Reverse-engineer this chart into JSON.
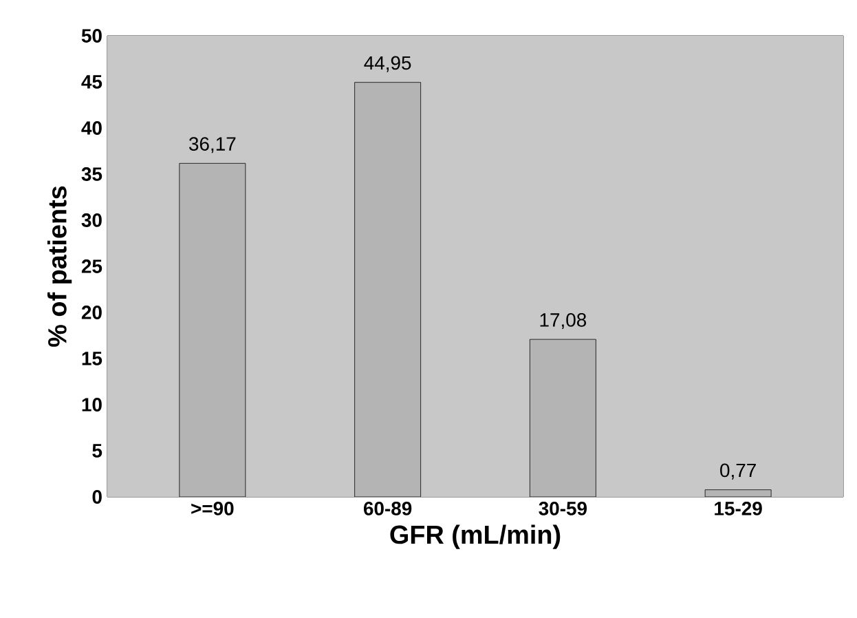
{
  "chart_data": {
    "type": "bar",
    "xlabel": "GFR (mL/min)",
    "ylabel": "% of patients",
    "categories": [
      ">=90",
      "60-89",
      "30-59",
      "15-29"
    ],
    "values": [
      36.17,
      44.95,
      17.08,
      0.77
    ],
    "value_labels": [
      "36,17",
      "44,95",
      "17,08",
      "0,77"
    ],
    "color": "#b4b4b4",
    "ylim": [
      0,
      50
    ],
    "yticks": [
      0,
      5,
      10,
      15,
      20,
      25,
      30,
      35,
      40,
      45,
      50
    ]
  }
}
